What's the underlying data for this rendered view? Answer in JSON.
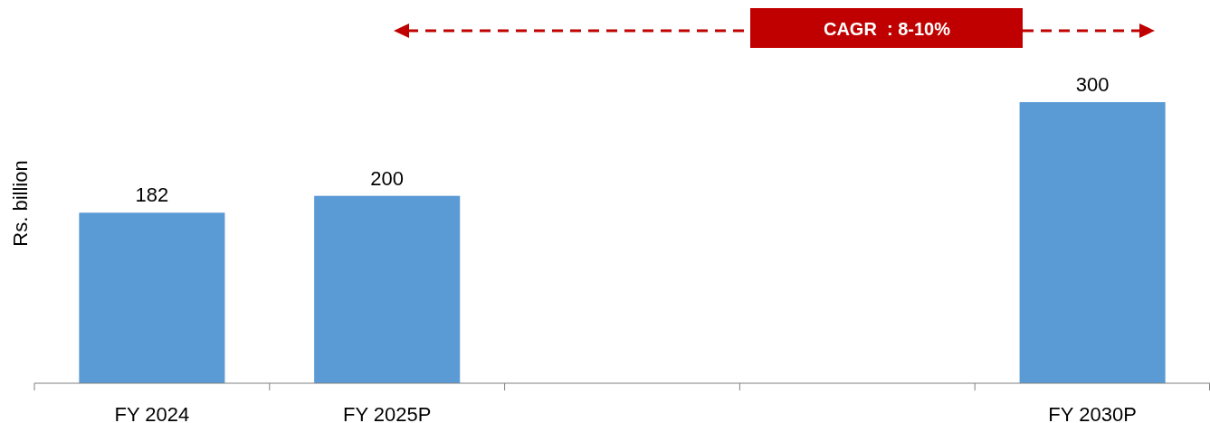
{
  "chart_data": {
    "type": "bar",
    "ylabel": "Rs. billion",
    "categories": [
      "FY 2024",
      "FY 2025P",
      null,
      null,
      "FY 2030P"
    ],
    "values": [
      182,
      200,
      null,
      null,
      300
    ],
    "color": "#5b9bd5",
    "data_labels": true,
    "annotations": [
      "CAGR  : 8-10%"
    ]
  }
}
